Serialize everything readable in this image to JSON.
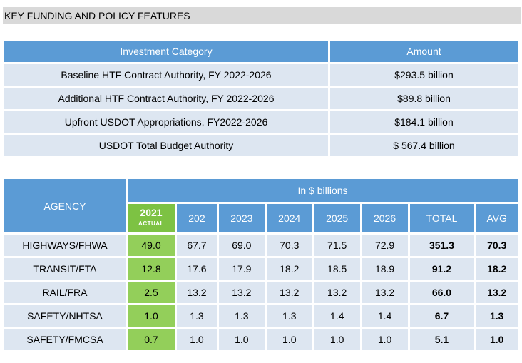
{
  "section_title": "KEY FUNDING AND POLICY FEATURES",
  "investment_table": {
    "headers": [
      "Investment Category",
      "Amount"
    ],
    "rows": [
      [
        "Baseline HTF Contract Authority, FY 2022-2026",
        "$293.5 billion"
      ],
      [
        "Additional HTF Contract Authority, FY 2022-2026",
        "$89.8 billion"
      ],
      [
        "Upfront USDOT Appropriations, FY2022-2026",
        "$184.1 billion"
      ],
      [
        "USDOT Total Budget Authority",
        "$ 567.4 billion"
      ]
    ]
  },
  "agency_table": {
    "agency_header": "AGENCY",
    "super_header": "In $ billions",
    "year_2021": "2021",
    "year_2021_note": "ACTUAL",
    "years": [
      "202",
      "2023",
      "2024",
      "2025",
      "2026"
    ],
    "total_header": "TOTAL",
    "avg_header": "AVG",
    "rows": [
      {
        "agency": "HIGHWAYS/FHWA",
        "actual": "49.0",
        "values": [
          "67.7",
          "69.0",
          "70.3",
          "71.5",
          "72.9"
        ],
        "total": "351.3",
        "avg": "70.3"
      },
      {
        "agency": "TRANSIT/FTA",
        "actual": "12.8",
        "values": [
          "17.6",
          "17.9",
          "18.2",
          "18.5",
          "18.9"
        ],
        "total": "91.2",
        "avg": "18.2"
      },
      {
        "agency": "RAIL/FRA",
        "actual": "2.5",
        "values": [
          "13.2",
          "13.2",
          "13.2",
          "13.2",
          "13.2"
        ],
        "total": "66.0",
        "avg": "13.2"
      },
      {
        "agency": "SAFETY/NHTSA",
        "actual": "1.0",
        "values": [
          "1.3",
          "1.3",
          "1.3",
          "1.4",
          "1.4"
        ],
        "total": "6.7",
        "avg": "1.3"
      },
      {
        "agency": "SAFETY/FMCSA",
        "actual": "0.7",
        "values": [
          "1.0",
          "1.0",
          "1.0",
          "1.0",
          "1.0"
        ],
        "total": "5.1",
        "avg": "1.0"
      }
    ]
  }
}
